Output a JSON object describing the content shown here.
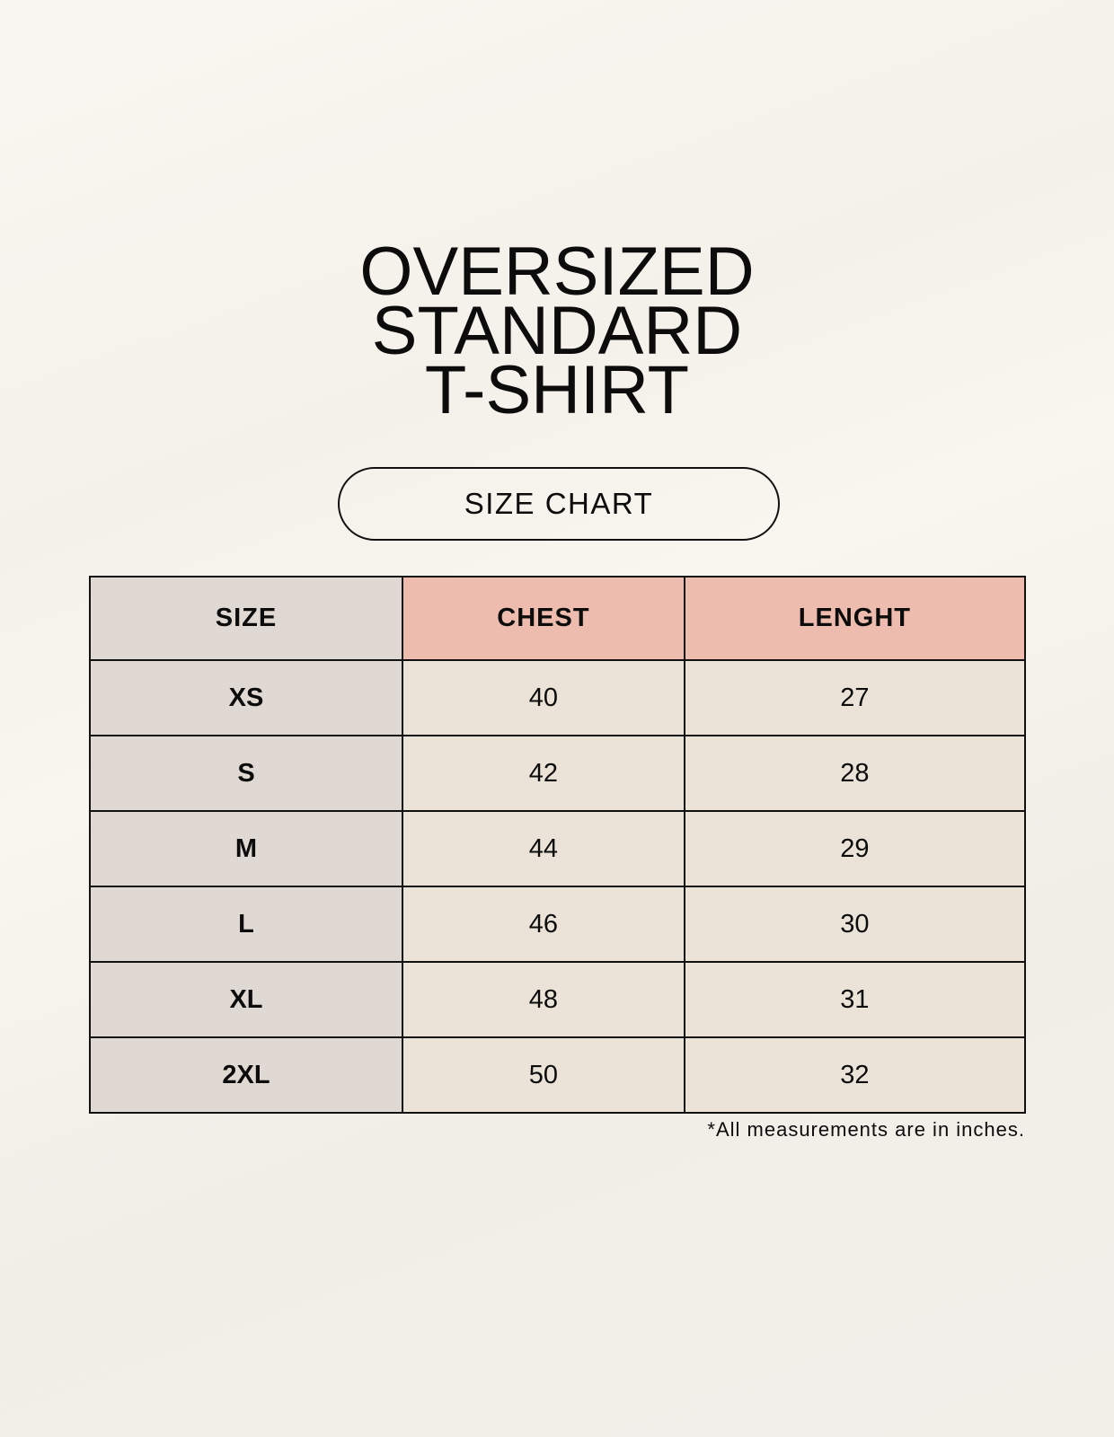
{
  "title_lines": [
    "OVERSIZED",
    "STANDARD",
    "T-SHIRT"
  ],
  "badge": "SIZE CHART",
  "table": {
    "headers": [
      "SIZE",
      "CHEST",
      "LENGHT"
    ],
    "rows": [
      [
        "XS",
        "40",
        "27"
      ],
      [
        "S",
        "42",
        "28"
      ],
      [
        "M",
        "44",
        "29"
      ],
      [
        "L",
        "46",
        "30"
      ],
      [
        "XL",
        "48",
        "31"
      ],
      [
        "2XL",
        "50",
        "32"
      ]
    ]
  },
  "note": "*All measurements are in inches.",
  "colors": {
    "size_column": "#e0d8d2",
    "header_accent": "#eebcae",
    "body_cells": "#ebe3d8",
    "background": "#f8f5ee"
  }
}
